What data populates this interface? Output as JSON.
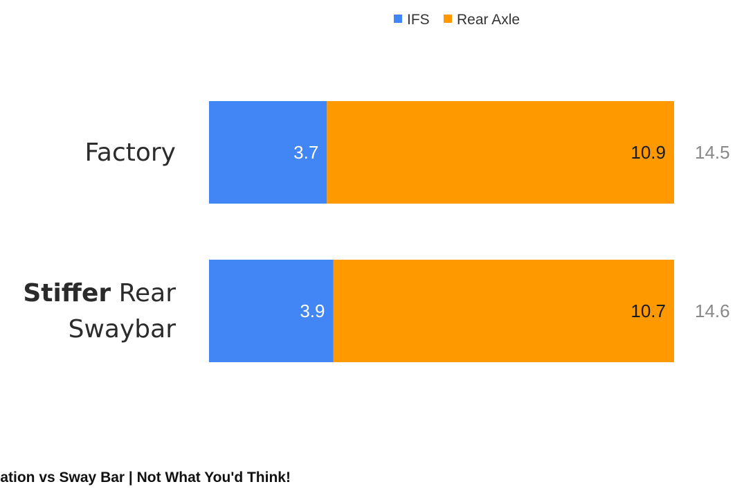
{
  "chart_data": {
    "type": "bar",
    "orientation": "horizontal",
    "stacked": true,
    "title": "",
    "xlabel": "",
    "ylabel": "",
    "xlim": [
      0,
      14.6
    ],
    "grid": false,
    "legend_position": "top",
    "categories": [
      {
        "parts": [
          {
            "text": "Factory",
            "bold": false
          }
        ]
      },
      {
        "parts": [
          {
            "text": "Stiffer",
            "bold": true
          },
          {
            "text": " Rear",
            "bold": false
          },
          {
            "newline": true,
            "text": "Swaybar",
            "bold": false
          }
        ]
      }
    ],
    "series": [
      {
        "name": "IFS",
        "color": "#4285f4",
        "values": [
          3.7,
          3.9
        ],
        "value_labels": [
          "3.7",
          "3.9"
        ]
      },
      {
        "name": "Rear Axle",
        "color": "#ff9900",
        "values": [
          10.9,
          10.7
        ],
        "value_labels": [
          "10.9",
          "10.7"
        ]
      }
    ],
    "totals": [
      "14.5",
      "14.6"
    ]
  },
  "caption": "culation vs Sway Bar | Not What You'd Think!"
}
